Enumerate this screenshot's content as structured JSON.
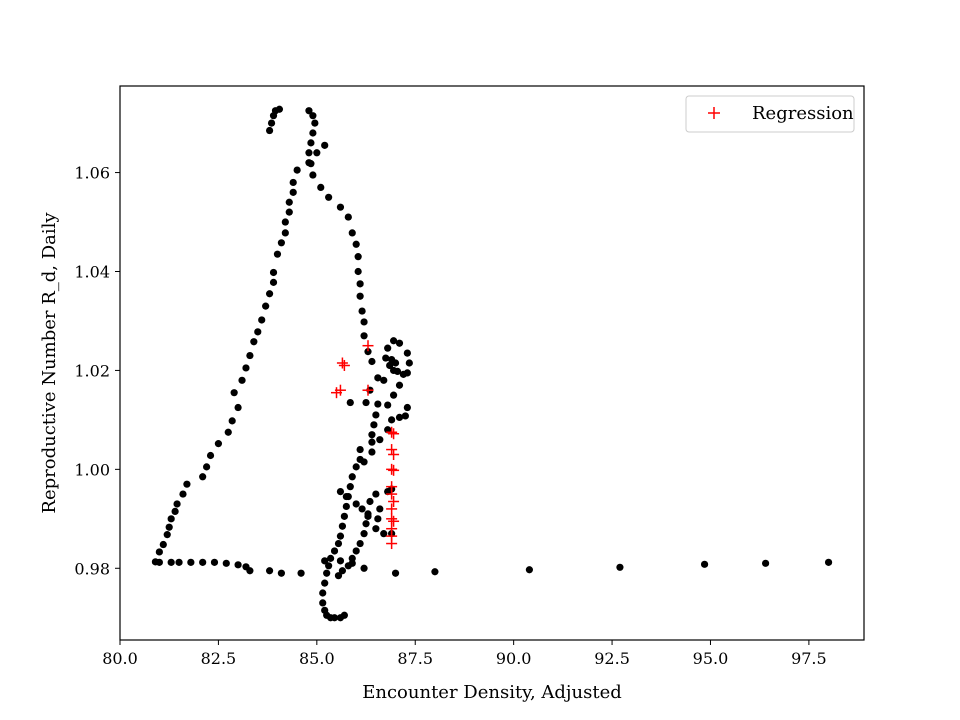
{
  "chart_data": {
    "type": "scatter",
    "title": "",
    "xlabel": "Encounter Density, Adjusted",
    "ylabel": "Reproductive Number R_d, Daily",
    "xlim": [
      80.0,
      98.9
    ],
    "ylim": [
      0.9655,
      1.0775
    ],
    "xticks": [
      "80.0",
      "82.5",
      "85.0",
      "87.5",
      "90.0",
      "92.5",
      "95.0",
      "97.5"
    ],
    "yticks": [
      "0.98",
      "1.00",
      "1.02",
      "1.04",
      "1.06"
    ],
    "grid": false,
    "legend_position": "top-right",
    "colors": {
      "observed": "#000000",
      "regression": "#ff0000"
    },
    "series": [
      {
        "marker": "dot",
        "points": [
          [
            80.9,
            0.9813
          ],
          [
            81.0,
            0.9833
          ],
          [
            81.1,
            0.9848
          ],
          [
            81.2,
            0.9868
          ],
          [
            81.25,
            0.9883
          ],
          [
            81.3,
            0.99
          ],
          [
            81.4,
            0.9915
          ],
          [
            81.45,
            0.993
          ],
          [
            81.6,
            0.995
          ],
          [
            81.7,
            0.997
          ],
          [
            82.1,
            0.9985
          ],
          [
            82.2,
            1.0005
          ],
          [
            82.3,
            1.0028
          ],
          [
            82.5,
            1.0052
          ],
          [
            82.75,
            1.0075
          ],
          [
            82.85,
            1.0098
          ],
          [
            83.0,
            1.0125
          ],
          [
            82.9,
            1.0155
          ],
          [
            83.1,
            1.018
          ],
          [
            83.2,
            1.0205
          ],
          [
            83.3,
            1.023
          ],
          [
            83.4,
            1.0258
          ],
          [
            83.5,
            1.0278
          ],
          [
            83.6,
            1.0302
          ],
          [
            83.7,
            1.033
          ],
          [
            83.8,
            1.0355
          ],
          [
            83.9,
            1.0378
          ],
          [
            83.9,
            1.0398
          ],
          [
            84.0,
            1.0435
          ],
          [
            84.1,
            1.0458
          ],
          [
            84.2,
            1.0478
          ],
          [
            84.2,
            1.05
          ],
          [
            84.3,
            1.052
          ],
          [
            84.3,
            1.054
          ],
          [
            84.4,
            1.056
          ],
          [
            84.4,
            1.058
          ],
          [
            84.5,
            1.0605
          ],
          [
            84.8,
            1.062
          ],
          [
            85.0,
            1.064
          ],
          [
            85.2,
            1.0655
          ],
          [
            83.8,
            1.0685
          ],
          [
            83.85,
            1.07
          ],
          [
            83.9,
            1.0715
          ],
          [
            83.95,
            1.0725
          ],
          [
            84.05,
            1.0728
          ],
          [
            84.8,
            1.0725
          ],
          [
            84.9,
            1.0715
          ],
          [
            84.95,
            1.07
          ],
          [
            84.9,
            1.068
          ],
          [
            84.85,
            1.066
          ],
          [
            84.8,
            1.064
          ],
          [
            84.85,
            1.0618
          ],
          [
            84.9,
            1.0595
          ],
          [
            85.1,
            1.057
          ],
          [
            85.3,
            1.055
          ],
          [
            85.6,
            1.053
          ],
          [
            85.8,
            1.051
          ],
          [
            85.9,
            1.0478
          ],
          [
            86.0,
            1.0455
          ],
          [
            86.05,
            1.043
          ],
          [
            86.05,
            1.04
          ],
          [
            86.1,
            1.0375
          ],
          [
            86.1,
            1.035
          ],
          [
            86.15,
            1.032
          ],
          [
            86.2,
            1.0298
          ],
          [
            86.2,
            1.027
          ],
          [
            86.3,
            1.0238
          ],
          [
            86.4,
            1.0218
          ],
          [
            86.55,
            1.0185
          ],
          [
            86.35,
            1.016
          ],
          [
            85.85,
            1.0135
          ],
          [
            86.25,
            1.0135
          ],
          [
            86.55,
            1.0132
          ],
          [
            86.8,
            1.013
          ],
          [
            86.5,
            1.011
          ],
          [
            86.45,
            1.009
          ],
          [
            86.4,
            1.007
          ],
          [
            86.4,
            1.0055
          ],
          [
            86.1,
            1.004
          ],
          [
            86.1,
            1.002
          ],
          [
            86.0,
            1.0005
          ],
          [
            85.9,
            0.9985
          ],
          [
            85.85,
            0.9965
          ],
          [
            85.8,
            0.9945
          ],
          [
            85.75,
            0.9925
          ],
          [
            85.7,
            0.9905
          ],
          [
            85.65,
            0.9885
          ],
          [
            85.6,
            0.9865
          ],
          [
            85.55,
            0.985
          ],
          [
            85.45,
            0.9835
          ],
          [
            85.35,
            0.982
          ],
          [
            85.3,
            0.9805
          ],
          [
            85.25,
            0.979
          ],
          [
            85.2,
            0.977
          ],
          [
            85.15,
            0.975
          ],
          [
            85.15,
            0.973
          ],
          [
            85.2,
            0.9715
          ],
          [
            85.25,
            0.9705
          ],
          [
            85.35,
            0.97
          ],
          [
            85.45,
            0.97
          ],
          [
            85.6,
            0.97
          ],
          [
            85.7,
            0.9705
          ],
          [
            85.55,
            0.9785
          ],
          [
            85.65,
            0.9795
          ],
          [
            85.8,
            0.9805
          ],
          [
            85.9,
            0.982
          ],
          [
            86.0,
            0.9835
          ],
          [
            86.1,
            0.985
          ],
          [
            86.2,
            0.987
          ],
          [
            86.25,
            0.989
          ],
          [
            86.3,
            0.991
          ],
          [
            86.35,
            0.9935
          ],
          [
            86.5,
            0.995
          ],
          [
            86.8,
            0.9955
          ],
          [
            86.9,
            0.996
          ],
          [
            85.6,
            0.9955
          ],
          [
            85.75,
            0.9945
          ],
          [
            86.0,
            0.993
          ],
          [
            86.15,
            0.992
          ],
          [
            86.3,
            0.9905
          ],
          [
            86.5,
            0.988
          ],
          [
            86.7,
            0.987
          ],
          [
            86.9,
            0.987
          ],
          [
            86.55,
            0.99
          ],
          [
            86.6,
            0.992
          ],
          [
            86.2,
            1.0015
          ],
          [
            86.4,
            1.0035
          ],
          [
            86.6,
            1.006
          ],
          [
            86.8,
            1.008
          ],
          [
            86.9,
            1.01
          ],
          [
            87.1,
            1.0105
          ],
          [
            87.25,
            1.0108
          ],
          [
            87.3,
            1.0125
          ],
          [
            86.95,
            1.015
          ],
          [
            87.1,
            1.017
          ],
          [
            87.3,
            1.0195
          ],
          [
            87.35,
            1.0215
          ],
          [
            87.3,
            1.0235
          ],
          [
            87.1,
            1.0255
          ],
          [
            86.95,
            1.026
          ],
          [
            86.8,
            1.0245
          ],
          [
            86.75,
            1.0225
          ],
          [
            86.85,
            1.021
          ],
          [
            86.95,
            1.02
          ],
          [
            87.05,
            1.0198
          ],
          [
            87.2,
            1.0192
          ],
          [
            86.9,
            1.0222
          ],
          [
            87.0,
            1.0215
          ],
          [
            86.7,
            1.018
          ],
          [
            87.0,
            0.979
          ],
          [
            86.2,
            0.98
          ],
          [
            85.9,
            0.981
          ],
          [
            85.6,
            0.9815
          ],
          [
            85.2,
            0.9815
          ],
          [
            84.6,
            0.979
          ],
          [
            84.1,
            0.979
          ],
          [
            83.8,
            0.9795
          ],
          [
            83.3,
            0.9795
          ],
          [
            83.2,
            0.9803
          ],
          [
            83.0,
            0.9807
          ],
          [
            82.7,
            0.981
          ],
          [
            82.4,
            0.9812
          ],
          [
            82.1,
            0.9812
          ],
          [
            81.8,
            0.9812
          ],
          [
            81.5,
            0.9812
          ],
          [
            81.3,
            0.9812
          ],
          [
            81.0,
            0.9812
          ],
          [
            88.0,
            0.9793
          ],
          [
            90.4,
            0.9797
          ],
          [
            92.7,
            0.9802
          ],
          [
            94.85,
            0.9808
          ],
          [
            96.4,
            0.981
          ],
          [
            98.0,
            0.9812
          ]
        ]
      },
      {
        "name": "Regression",
        "marker": "plus",
        "points": [
          [
            85.65,
            1.0215
          ],
          [
            85.7,
            1.021
          ],
          [
            86.3,
            1.025
          ],
          [
            85.5,
            1.0155
          ],
          [
            85.6,
            1.016
          ],
          [
            86.3,
            1.016
          ],
          [
            86.9,
            1.0075
          ],
          [
            86.95,
            1.0072
          ],
          [
            86.9,
            1.004
          ],
          [
            86.95,
            1.003
          ],
          [
            86.9,
            1.0
          ],
          [
            86.95,
            0.9998
          ],
          [
            86.9,
            0.9965
          ],
          [
            86.9,
            0.995
          ],
          [
            86.95,
            0.9935
          ],
          [
            86.9,
            0.992
          ],
          [
            86.9,
            0.99
          ],
          [
            86.95,
            0.9895
          ],
          [
            86.9,
            0.988
          ],
          [
            86.9,
            0.9865
          ],
          [
            86.9,
            0.985
          ]
        ]
      }
    ]
  }
}
